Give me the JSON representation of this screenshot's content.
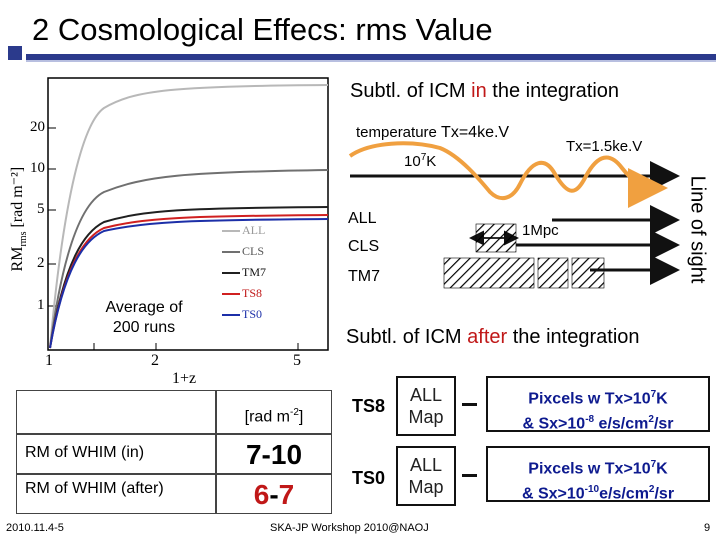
{
  "slide": {
    "title": "2 Cosmological Effecs: rms Value",
    "footer_left": "2010.11.4-5",
    "footer_center": "SKA-JP Workshop 2010@NAOJ",
    "page_number": "9"
  },
  "plot": {
    "ylabel": "RM",
    "ylabel_sub": "rms",
    "ylabel_unit": "[rad m⁻²]",
    "xlabel": "1+z",
    "y_ticks": [
      "1",
      "2",
      "5",
      "10",
      "20"
    ],
    "x_ticks": [
      "1",
      "2",
      "5"
    ],
    "legend": [
      "ALL",
      "CLS",
      "TM7",
      "TS8",
      "TS0"
    ],
    "note": "Average of 200 runs"
  },
  "diagram": {
    "section1_prefix": "Subtl. of ICM ",
    "section1_highlight": "in",
    "section1_suffix": " the integration",
    "temperature_label": "temperature ",
    "temp_value": "Tx=4ke.V",
    "temp_value2": "Tx=1.5ke.V",
    "temp_base": "10",
    "temp_base_exp": "7",
    "temp_base_unit": "K",
    "rows": [
      "ALL",
      "CLS",
      "TM7"
    ],
    "scale_label": "1Mpc",
    "line_of_sight": "Line of sight",
    "section2_prefix": "Subtl. of ICM ",
    "section2_highlight": "after",
    "section2_suffix": " the integration"
  },
  "table": {
    "unit_label": "[rad m",
    "unit_exp": "-2",
    "unit_close": "]",
    "row1_label": "RM of WHIM (in)",
    "row1_value": "7-10",
    "row2_label": "RM of WHIM (after)",
    "row2_value_a": "6",
    "row2_value_dash": "-",
    "row2_value_b": "7"
  },
  "maps": [
    {
      "name": "TS8",
      "map_line1": "ALL",
      "map_line2": "Map",
      "desc_line1_a": "Pixcels w Tx>10",
      "desc_line1_exp": "7",
      "desc_line1_b": "K",
      "desc_line2_a": "& Sx>10",
      "desc_line2_exp": "-8",
      "desc_line2_b": " e/s/cm",
      "desc_line2_exp2": "2",
      "desc_line2_c": "/sr"
    },
    {
      "name": "TS0",
      "map_line1": "ALL",
      "map_line2": "Map",
      "desc_line1_a": "Pixcels w Tx>10",
      "desc_line1_exp": "7",
      "desc_line1_b": "K",
      "desc_line2_a": "& Sx>10",
      "desc_line2_exp": "-10",
      "desc_line2_b": "e/s/cm",
      "desc_line2_exp2": "2",
      "desc_line2_c": "/sr"
    }
  ],
  "colors": {
    "accent": "#2b3a8c",
    "highlight": "#c01818",
    "arrow_orange": "#f0a040",
    "ts0_blue": "#0d1a8f"
  }
}
